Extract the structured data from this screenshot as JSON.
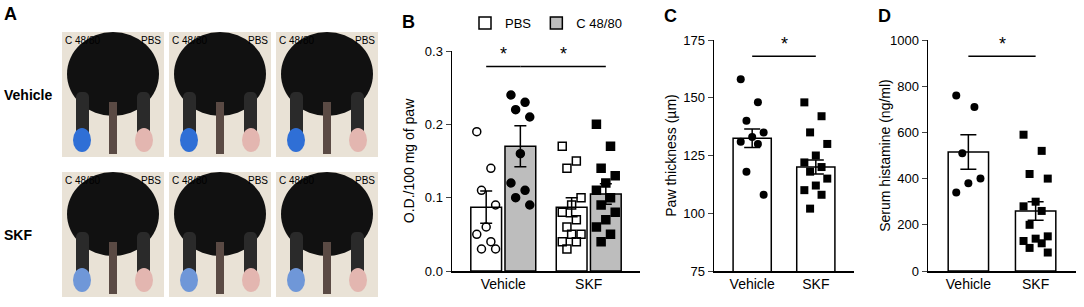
{
  "panel_a": {
    "letter": "A",
    "rows": [
      {
        "label": "Vehicle",
        "images": [
          {
            "left": "C 48/80",
            "right": "PBS"
          },
          {
            "left": "C 48/80",
            "right": "PBS"
          },
          {
            "left": "C 48/80",
            "right": "PBS"
          }
        ]
      },
      {
        "label": "SKF",
        "images": [
          {
            "left": "C 48/80",
            "right": "PBS"
          },
          {
            "left": "C 48/80",
            "right": "PBS"
          },
          {
            "left": "C 48/80",
            "right": "PBS"
          }
        ]
      }
    ]
  },
  "chart_data": [
    {
      "panel": "B",
      "type": "bar",
      "categories": [
        "Vehicle",
        "SKF"
      ],
      "series": [
        {
          "name": "PBS",
          "color": "#ffffff",
          "values": [
            0.087,
            0.087
          ],
          "error": [
            0.022,
            0.013
          ],
          "points": [
            [
              0.19,
              0.14,
              0.11,
              0.09,
              0.06,
              0.05,
              0.04,
              0.03,
              0.03
            ],
            [
              0.17,
              0.15,
              0.14,
              0.1,
              0.09,
              0.08,
              0.07,
              0.06,
              0.05,
              0.05,
              0.04,
              0.04,
              0.03
            ]
          ]
        },
        {
          "name": "C 48/80",
          "color": "#bdbdbd",
          "values": [
            0.17,
            0.105
          ],
          "error": [
            0.028,
            0.014
          ],
          "points": [
            [
              0.24,
              0.23,
              0.22,
              0.21,
              0.16,
              0.12,
              0.11,
              0.1,
              0.09
            ],
            [
              0.2,
              0.17,
              0.14,
              0.13,
              0.12,
              0.11,
              0.1,
              0.09,
              0.08,
              0.07,
              0.06,
              0.05,
              0.04
            ]
          ]
        }
      ],
      "ylabel": "O.D./100 mg of paw",
      "ylim": [
        0,
        0.3
      ],
      "yticks": [
        {
          "value": 0,
          "label": "0.0"
        },
        0.1,
        0.2,
        0.3
      ],
      "legend": "top",
      "grid": false,
      "significance": [
        {
          "text": "*",
          "between": [
            [
              "Vehicle",
              "PBS"
            ],
            [
              "Vehicle",
              "C 48/80"
            ]
          ]
        },
        {
          "text": "*",
          "between": [
            [
              "Vehicle",
              "C 48/80"
            ],
            [
              "SKF",
              "C 48/80"
            ]
          ]
        }
      ]
    },
    {
      "panel": "C",
      "type": "bar",
      "categories": [
        "Vehicle",
        "SKF"
      ],
      "color": "#ffffff",
      "values": [
        132.5,
        120
      ],
      "error": [
        4,
        3
      ],
      "points": [
        [
          158,
          148,
          140,
          135,
          133,
          131,
          130,
          118,
          108
        ],
        [
          148,
          142,
          135,
          130,
          125,
          122,
          120,
          118,
          115,
          112,
          110,
          108,
          102
        ]
      ],
      "ylabel": "Paw thickness (µm)",
      "ylim": [
        75,
        175
      ],
      "yticks": [
        75,
        100,
        125,
        150,
        175
      ],
      "grid": false,
      "significance": [
        {
          "text": "*",
          "between": [
            "Vehicle",
            "SKF"
          ]
        }
      ]
    },
    {
      "panel": "D",
      "type": "bar",
      "categories": [
        "Vehicle",
        "SKF"
      ],
      "color": "#ffffff",
      "values": [
        515,
        260
      ],
      "error": [
        75,
        40
      ],
      "points": [
        [
          760,
          710,
          510,
          400,
          380,
          340
        ],
        [
          590,
          520,
          420,
          400,
          300,
          280,
          260,
          200,
          150,
          140,
          130,
          120,
          100,
          80
        ]
      ],
      "ylabel": "Serum histamine (ng/ml)",
      "ylim": [
        0,
        1000
      ],
      "yticks": [
        0,
        200,
        400,
        600,
        800,
        1000
      ],
      "grid": false,
      "significance": [
        {
          "text": "*",
          "between": [
            "Vehicle",
            "SKF"
          ]
        }
      ]
    }
  ]
}
